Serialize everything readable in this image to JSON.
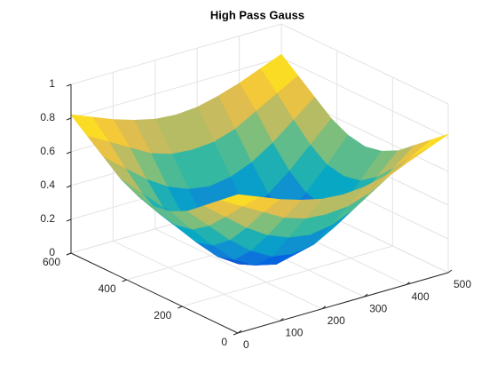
{
  "chart_data": {
    "type": "surface",
    "title": "High Pass Gauss",
    "x": [
      0,
      50,
      100,
      150,
      200,
      250,
      300,
      350,
      400,
      450,
      500
    ],
    "y": [
      0,
      60,
      120,
      180,
      240,
      300,
      360,
      420,
      480,
      540,
      600
    ],
    "z": [
      [
        0.82,
        0.77,
        0.72,
        0.68,
        0.65,
        0.64,
        0.65,
        0.68,
        0.72,
        0.77,
        0.82
      ],
      [
        0.74,
        0.67,
        0.6,
        0.53,
        0.49,
        0.48,
        0.49,
        0.53,
        0.6,
        0.67,
        0.74
      ],
      [
        0.66,
        0.56,
        0.46,
        0.38,
        0.33,
        0.31,
        0.33,
        0.38,
        0.46,
        0.56,
        0.66
      ],
      [
        0.58,
        0.46,
        0.34,
        0.24,
        0.17,
        0.15,
        0.17,
        0.24,
        0.34,
        0.46,
        0.58
      ],
      [
        0.53,
        0.39,
        0.26,
        0.14,
        0.07,
        0.04,
        0.07,
        0.14,
        0.26,
        0.39,
        0.53
      ],
      [
        0.51,
        0.37,
        0.23,
        0.11,
        0.03,
        0,
        0.03,
        0.11,
        0.23,
        0.37,
        0.51
      ],
      [
        0.53,
        0.39,
        0.26,
        0.14,
        0.07,
        0.04,
        0.07,
        0.14,
        0.26,
        0.39,
        0.53
      ],
      [
        0.58,
        0.46,
        0.34,
        0.24,
        0.17,
        0.15,
        0.17,
        0.24,
        0.34,
        0.46,
        0.58
      ],
      [
        0.66,
        0.56,
        0.46,
        0.38,
        0.33,
        0.31,
        0.33,
        0.38,
        0.46,
        0.56,
        0.66
      ],
      [
        0.74,
        0.67,
        0.6,
        0.53,
        0.49,
        0.48,
        0.49,
        0.53,
        0.6,
        0.67,
        0.74
      ],
      [
        0.82,
        0.77,
        0.72,
        0.68,
        0.65,
        0.64,
        0.65,
        0.68,
        0.72,
        0.77,
        0.82
      ]
    ],
    "xlim": [
      0,
      500
    ],
    "ylim": [
      0,
      600
    ],
    "zlim": [
      0,
      1
    ],
    "xticks": [
      0,
      100,
      200,
      300,
      400,
      500
    ],
    "yticks": [
      0,
      200,
      400,
      600
    ],
    "zticks": [
      0,
      0.2,
      0.4,
      0.6,
      0.8,
      1
    ],
    "colormap": "parula",
    "grid": true
  }
}
